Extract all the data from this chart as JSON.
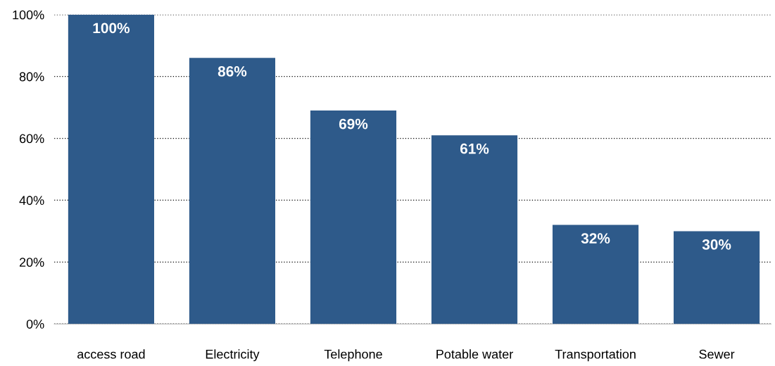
{
  "chart_data": {
    "type": "bar",
    "categories": [
      "access road",
      "Electricity",
      "Telephone",
      "Potable water",
      "Transportation",
      "Sewer"
    ],
    "values": [
      100,
      86,
      69,
      61,
      32,
      30
    ],
    "value_labels": [
      "100%",
      "86%",
      "69%",
      "61%",
      "32%",
      "30%"
    ],
    "color": "#2e5a8a",
    "ylim": [
      0,
      100
    ],
    "yticks": [
      {
        "value": 0,
        "label": "0%"
      },
      {
        "value": 20,
        "label": "20%"
      },
      {
        "value": 40,
        "label": "40%"
      },
      {
        "value": 60,
        "label": "60%"
      },
      {
        "value": 80,
        "label": "80%"
      },
      {
        "value": 100,
        "label": "100%"
      }
    ],
    "grid": "y",
    "legend": false
  }
}
